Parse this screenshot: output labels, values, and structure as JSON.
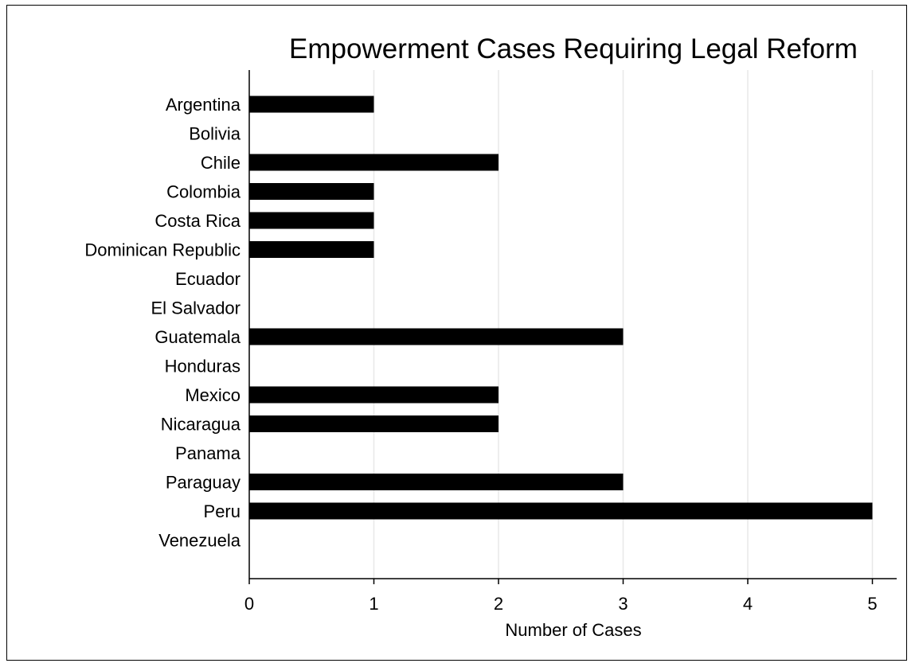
{
  "chart_data": {
    "type": "bar",
    "orientation": "horizontal",
    "title": "Empowerment Cases Requiring Legal Reform",
    "xlabel": "Number of Cases",
    "ylabel": "",
    "categories": [
      "Argentina",
      "Bolivia",
      "Chile",
      "Colombia",
      "Costa Rica",
      "Dominican Republic",
      "Ecuador",
      "El Salvador",
      "Guatemala",
      "Honduras",
      "Mexico",
      "Nicaragua",
      "Panama",
      "Paraguay",
      "Peru",
      "Venezuela"
    ],
    "values": [
      1,
      0,
      2,
      1,
      1,
      1,
      0,
      0,
      3,
      0,
      2,
      2,
      0,
      3,
      5,
      0
    ],
    "xlim": [
      0,
      5
    ],
    "xticks": [
      "0",
      "1",
      "2",
      "3",
      "4",
      "5"
    ],
    "grid": "vertical",
    "bar_color": "#000000",
    "grid_color": "#e8e8e8"
  }
}
